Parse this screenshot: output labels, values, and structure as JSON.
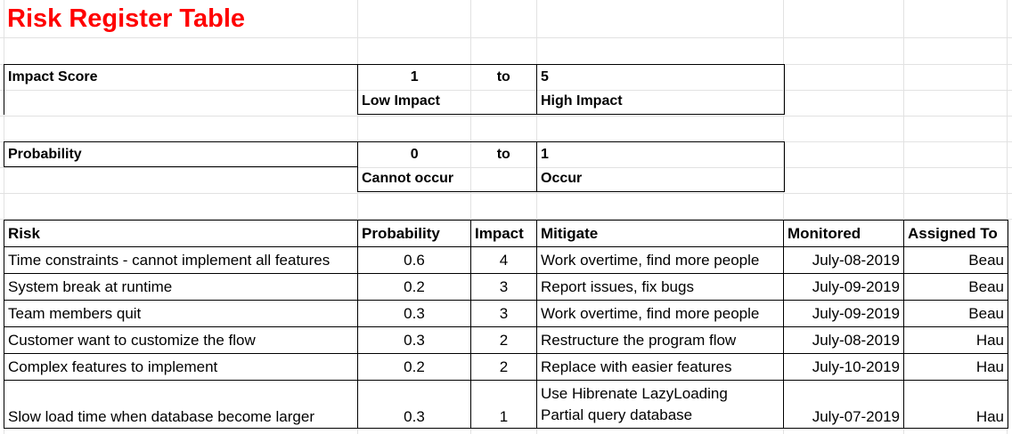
{
  "title": "Risk Register Table",
  "impact_scale": {
    "label": "Impact Score",
    "min": "1",
    "to": "to",
    "max": "5",
    "min_desc": "Low Impact",
    "max_desc": "High Impact"
  },
  "probability_scale": {
    "label": "Probability",
    "min": "0",
    "to": "to",
    "max": "1",
    "min_desc": "Cannot occur",
    "max_desc": "Occur"
  },
  "risk_table": {
    "headers": [
      "Risk",
      "Probability",
      "Impact",
      "Mitigate",
      "Monitored",
      "Assigned To"
    ],
    "rows": [
      {
        "risk": "Time constraints - cannot implement all features",
        "probability": "0.6",
        "impact": "4",
        "mitigate": [
          "Work overtime, find more people"
        ],
        "monitored": "July-08-2019",
        "assigned": "Beau"
      },
      {
        "risk": "System break at runtime",
        "probability": "0.2",
        "impact": "3",
        "mitigate": [
          "Report issues, fix bugs"
        ],
        "monitored": "July-09-2019",
        "assigned": "Beau"
      },
      {
        "risk": "Team members quit",
        "probability": "0.3",
        "impact": "3",
        "mitigate": [
          "Work overtime, find more people"
        ],
        "monitored": "July-09-2019",
        "assigned": "Beau"
      },
      {
        "risk": "Customer want to customize the flow",
        "probability": "0.3",
        "impact": "2",
        "mitigate": [
          "Restructure the program flow"
        ],
        "monitored": "July-08-2019",
        "assigned": "Hau"
      },
      {
        "risk": "Complex features to implement",
        "probability": "0.2",
        "impact": "2",
        "mitigate": [
          "Replace with easier features"
        ],
        "monitored": "July-10-2019",
        "assigned": "Hau"
      },
      {
        "risk": "Slow load time when database become larger",
        "probability": "0.3",
        "impact": "1",
        "mitigate": [
          "Use Hibrenate LazyLoading",
          "Partial query database"
        ],
        "monitored": "July-07-2019",
        "assigned": "Hau"
      }
    ]
  }
}
